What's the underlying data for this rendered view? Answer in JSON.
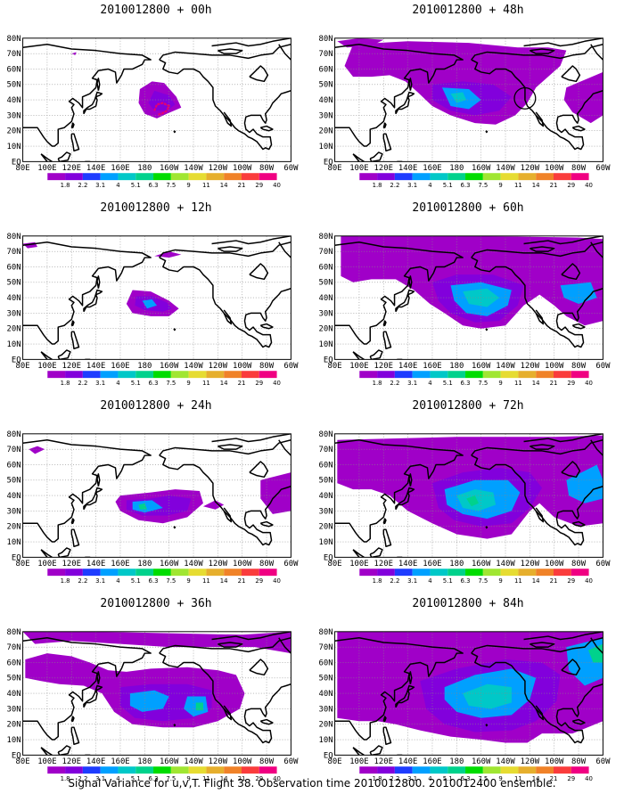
{
  "lat_labels": [
    "80N",
    "70N",
    "60N",
    "50N",
    "40N",
    "30N",
    "20N",
    "10N",
    "EQ"
  ],
  "lon_labels": [
    "80E",
    "100E",
    "120E",
    "140E",
    "160E",
    "180",
    "160W",
    "140W",
    "120W",
    "100W",
    "80W",
    "60W"
  ],
  "colorbar": {
    "labels": [
      "1.8",
      "2.2",
      "3.1",
      "4",
      "5.1",
      "6.3",
      "7.5",
      "9",
      "11",
      "14",
      "21",
      "29",
      "40"
    ],
    "colors": [
      "#a000c8",
      "#8200dc",
      "#1e3cff",
      "#00a0ff",
      "#00c8c8",
      "#00d28c",
      "#00dc00",
      "#a0e632",
      "#e6dc32",
      "#e6af2d",
      "#f08228",
      "#fa3c3c",
      "#f00082"
    ]
  },
  "panels": [
    {
      "title": "2010012800 + 00h"
    },
    {
      "title": "2010012800 + 48h"
    },
    {
      "title": "2010012800 + 12h"
    },
    {
      "title": "2010012800 + 60h"
    },
    {
      "title": "2010012800 + 24h"
    },
    {
      "title": "2010012800 + 72h"
    },
    {
      "title": "2010012800 + 36h"
    },
    {
      "title": "2010012800 + 84h"
    }
  ],
  "footer": "Signal Variance for u,v,T. Flight 38. Observation time 2010012800. 2010012400 ensemble."
}
